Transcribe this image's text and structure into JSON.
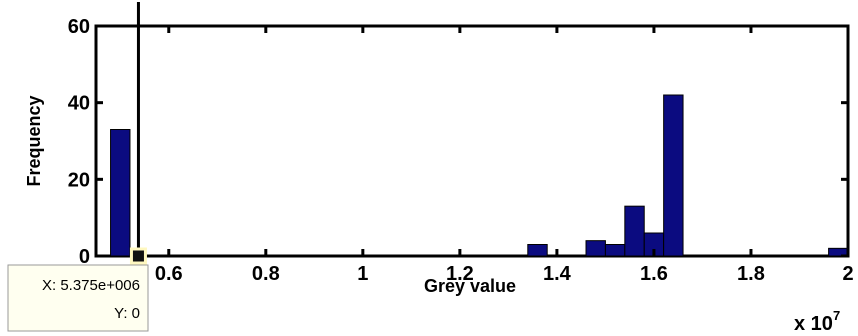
{
  "chart_data": {
    "type": "bar",
    "xlabel": "Grey value",
    "ylabel": "Frequency",
    "x_multiplier_label": "x 10",
    "x_multiplier_exponent": "7",
    "xlim": [
      0.45,
      2.0
    ],
    "ylim": [
      0,
      60
    ],
    "x_ticks": [
      0.6,
      0.8,
      1.0,
      1.2,
      1.4,
      1.6,
      1.8,
      2.0
    ],
    "x_tick_labels": [
      "0.6",
      "0.8",
      "1",
      "1.2",
      "1.4",
      "1.6",
      "1.8",
      "2"
    ],
    "y_ticks": [
      0,
      20,
      40,
      60
    ],
    "y_tick_labels": [
      "0",
      "20",
      "40",
      "60"
    ],
    "bar_width": 0.04,
    "bars": [
      {
        "x": 0.5,
        "value": 33
      },
      {
        "x": 1.36,
        "value": 3
      },
      {
        "x": 1.48,
        "value": 4
      },
      {
        "x": 1.52,
        "value": 3
      },
      {
        "x": 1.56,
        "value": 13
      },
      {
        "x": 1.6,
        "value": 6
      },
      {
        "x": 1.64,
        "value": 42
      },
      {
        "x": 1.98,
        "value": 2
      }
    ],
    "bar_color": "#0b0b80",
    "grid": false,
    "cursor": {
      "x": 0.5375,
      "y": 0,
      "x_text": "X: 5.375e+006",
      "y_text": "Y: 0"
    }
  }
}
